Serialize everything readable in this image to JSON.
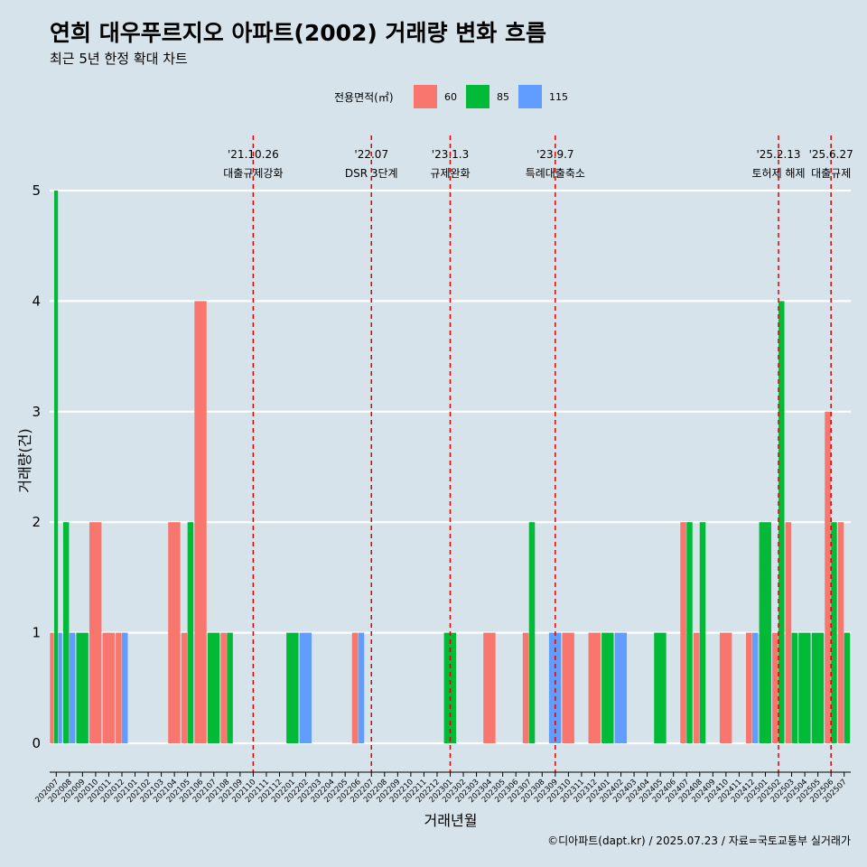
{
  "title": "연희 대우푸르지오 아파트(2002) 거래량 변화 흐름",
  "subtitle": "최근 5년 한정 확대 차트",
  "caption": "©디아파트(dapt.kr) / 2025.07.23 / 자료=국토교통부 실거래가",
  "legend": {
    "title": "전용면적(㎡)",
    "items": [
      {
        "label": "60",
        "color": "#f8766d"
      },
      {
        "label": "85",
        "color": "#00ba38"
      },
      {
        "label": "115",
        "color": "#619cff"
      }
    ]
  },
  "colors": {
    "background": "#d6e3ea",
    "grid": "#ffffff",
    "event_line": "#e00000"
  },
  "chart_data": {
    "type": "bar",
    "xlabel": "거래년월",
    "ylabel": "거래량(건)",
    "ylim": [
      0,
      5
    ],
    "yticks": [
      0,
      1,
      2,
      3,
      4,
      5
    ],
    "categories": [
      "202007",
      "202008",
      "202009",
      "202010",
      "202011",
      "202012",
      "202101",
      "202102",
      "202103",
      "202104",
      "202105",
      "202106",
      "202107",
      "202108",
      "202109",
      "202110",
      "202111",
      "202112",
      "202201",
      "202202",
      "202203",
      "202204",
      "202205",
      "202206",
      "202207",
      "202208",
      "202209",
      "202210",
      "202211",
      "202212",
      "202301",
      "202302",
      "202303",
      "202304",
      "202305",
      "202306",
      "202307",
      "202308",
      "202309",
      "202310",
      "202311",
      "202312",
      "202401",
      "202402",
      "202403",
      "202404",
      "202405",
      "202406",
      "202407",
      "202408",
      "202409",
      "202410",
      "202411",
      "202412",
      "202501",
      "202502",
      "202503",
      "202504",
      "202505",
      "202506",
      "202507"
    ],
    "series": [
      {
        "name": "60",
        "values": [
          1,
          0,
          0,
          2,
          1,
          1,
          0,
          0,
          0,
          2,
          1,
          4,
          0,
          1,
          0,
          0,
          0,
          0,
          0,
          0,
          0,
          0,
          0,
          1,
          0,
          0,
          0,
          0,
          0,
          0,
          0,
          0,
          0,
          1,
          0,
          0,
          1,
          0,
          0,
          1,
          0,
          1,
          0,
          0,
          0,
          0,
          0,
          0,
          2,
          1,
          0,
          1,
          0,
          1,
          0,
          1,
          2,
          0,
          0,
          3,
          2
        ]
      },
      {
        "name": "85",
        "values": [
          5,
          2,
          1,
          0,
          0,
          0,
          0,
          0,
          0,
          0,
          2,
          0,
          1,
          1,
          0,
          0,
          0,
          0,
          1,
          0,
          0,
          0,
          0,
          0,
          0,
          0,
          0,
          0,
          0,
          0,
          1,
          0,
          0,
          0,
          0,
          0,
          2,
          0,
          0,
          0,
          0,
          0,
          1,
          0,
          0,
          0,
          1,
          0,
          2,
          2,
          0,
          0,
          0,
          0,
          2,
          4,
          1,
          1,
          1,
          2,
          1
        ]
      },
      {
        "name": "115",
        "values": [
          1,
          1,
          0,
          0,
          0,
          1,
          0,
          0,
          0,
          0,
          0,
          0,
          0,
          0,
          0,
          0,
          0,
          0,
          0,
          1,
          0,
          0,
          0,
          1,
          0,
          0,
          0,
          0,
          0,
          0,
          0,
          0,
          0,
          0,
          0,
          0,
          0,
          0,
          1,
          0,
          0,
          0,
          0,
          1,
          0,
          0,
          0,
          0,
          0,
          0,
          0,
          0,
          0,
          1,
          0,
          0,
          0,
          0,
          0,
          0,
          0
        ]
      }
    ],
    "events": [
      {
        "date": "'21.10.26",
        "label": "대출규제강화",
        "at": "202110"
      },
      {
        "date": "'22.07",
        "label": "DSR 3단계",
        "at": "202207"
      },
      {
        "date": "'23.1.3",
        "label": "규제완화",
        "at": "202301"
      },
      {
        "date": "'23.9.7",
        "label": "특례대출축소",
        "at": "202309"
      },
      {
        "date": "'25.2.13",
        "label": "토허제 해제",
        "at": "202502"
      },
      {
        "date": "'25.6.27",
        "label": "대출규제",
        "at": "202506"
      }
    ],
    "grid": true,
    "legend_position": "top"
  }
}
